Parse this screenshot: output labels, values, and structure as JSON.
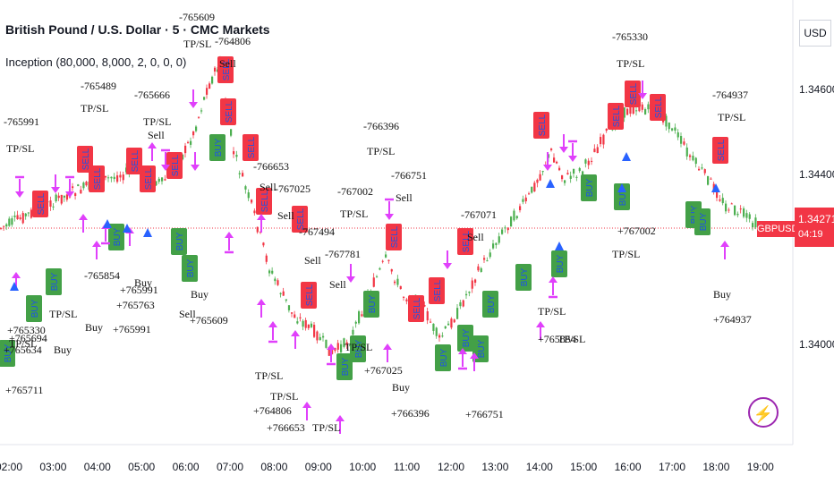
{
  "header": {
    "title": "British Pound / U.S. Dollar · 5 · CMC Markets",
    "indicator": "Inception (80,000, 8,000, 2, 0, 0, 0)"
  },
  "currency_button": "USD",
  "price_axis": [
    "1.34600",
    "1.34400",
    "1.34000"
  ],
  "time_axis": [
    "02:00",
    "03:00",
    "04:00",
    "05:00",
    "06:00",
    "07:00",
    "08:00",
    "09:00",
    "10:00",
    "11:00",
    "12:00",
    "13:00",
    "14:00",
    "15:00",
    "16:00",
    "17:00",
    "18:00",
    "19:00"
  ],
  "price_tag": {
    "symbol": "GBPUSD",
    "price": "1.34271",
    "countdown": "04:19"
  },
  "colors": {
    "up": "#4caf50",
    "down": "#f23645",
    "signal": "#e040fb",
    "arrow": "#2962ff"
  },
  "annotations": [
    {
      "t": "-765991"
    },
    {
      "t": "TP/SL"
    },
    {
      "t": "-765609"
    },
    {
      "t": "TP/SL"
    },
    {
      "t": "-764806"
    },
    {
      "t": "Sell"
    },
    {
      "t": "-765489"
    },
    {
      "t": "TP/SL"
    },
    {
      "t": "-765666"
    },
    {
      "t": "TP/SL"
    },
    {
      "t": "Sell"
    },
    {
      "t": "-766396"
    },
    {
      "t": "TP/SL"
    },
    {
      "t": "-766653"
    },
    {
      "t": "Sell"
    },
    {
      "t": "-767025"
    },
    {
      "t": "Sell"
    },
    {
      "t": "-767002"
    },
    {
      "t": "TP/SL"
    },
    {
      "t": "-766751"
    },
    {
      "t": "Sell"
    },
    {
      "t": "-767071"
    },
    {
      "t": "Sell"
    },
    {
      "t": "-767494"
    },
    {
      "t": "Sell"
    },
    {
      "t": "-767781"
    },
    {
      "t": "Sell"
    },
    {
      "t": "-765330"
    },
    {
      "t": "TP/SL"
    },
    {
      "t": "-764937"
    },
    {
      "t": "TP/SL"
    },
    {
      "t": "-765854"
    },
    {
      "t": "Sell"
    },
    {
      "t": "Buy"
    },
    {
      "t": "+765609"
    },
    {
      "t": "TP/SL"
    },
    {
      "t": "+764806"
    },
    {
      "t": "TP/SL"
    },
    {
      "t": "+766653"
    },
    {
      "t": "TP/SL"
    },
    {
      "t": "+767025"
    },
    {
      "t": "Buy"
    },
    {
      "t": "+766396"
    },
    {
      "t": "TP/SL"
    },
    {
      "t": "+766751"
    },
    {
      "t": "+767002"
    },
    {
      "t": "TP/SL"
    },
    {
      "t": "Buy"
    },
    {
      "t": "+764937"
    },
    {
      "t": "TP/SL"
    },
    {
      "t": "+765854"
    },
    {
      "t": "TP/SL"
    },
    {
      "t": "+765330"
    },
    {
      "t": "+765634"
    },
    {
      "t": "Buy"
    },
    {
      "t": "+765991"
    },
    {
      "t": "+765763"
    },
    {
      "t": "+765711"
    },
    {
      "t": "TP/SL"
    },
    {
      "t": "+765991"
    },
    {
      "t": "Buy"
    },
    {
      "t": "Buy"
    },
    {
      "t": "+765694"
    },
    {
      "t": "TP/SL"
    }
  ],
  "badges": [
    "BUY",
    "SELL"
  ]
}
